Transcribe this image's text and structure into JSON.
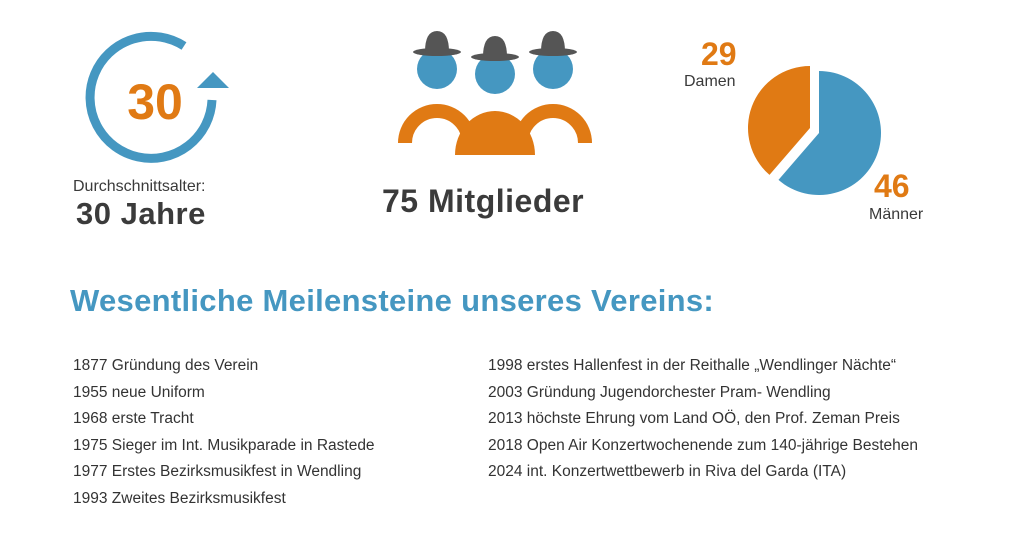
{
  "colors": {
    "blue": "#4597c1",
    "orange": "#e07a14",
    "text": "#3b3b3b",
    "hat": "#555555"
  },
  "icons": [
    "circular-arrow-icon",
    "members-group-icon"
  ],
  "average_age": {
    "icon_number": "30",
    "label": "Durchschnittsalter:",
    "value": "30 Jahre"
  },
  "members": {
    "value": "75 Mitglieder"
  },
  "chart_data": {
    "type": "pie",
    "title": "",
    "slices": [
      {
        "label": "Damen",
        "value": 29,
        "color": "#e07a14"
      },
      {
        "label": "Männer",
        "value": 46,
        "color": "#4597c1"
      }
    ],
    "legend": "none"
  },
  "milestones": {
    "heading": "Wesentliche Meilensteine unseres Vereins:",
    "left": [
      "1877 Gründung des Verein",
      "1955 neue Uniform",
      "1968 erste Tracht",
      "1975 Sieger im Int. Musikparade in Rastede",
      "1977 Erstes Bezirksmusikfest in Wendling",
      "1993 Zweites Bezirksmusikfest"
    ],
    "right": [
      "1998 erstes Hallenfest in der Reithalle „Wendlinger Nächte“",
      "2003 Gründung Jugendorchester Pram- Wendling",
      "2013 höchste Ehrung vom Land OÖ, den Prof. Zeman Preis",
      "2018 Open Air Konzertwochenende zum 140-jährige Bestehen",
      "2024 int. Konzertwettbewerb in Riva del Garda (ITA)"
    ]
  }
}
